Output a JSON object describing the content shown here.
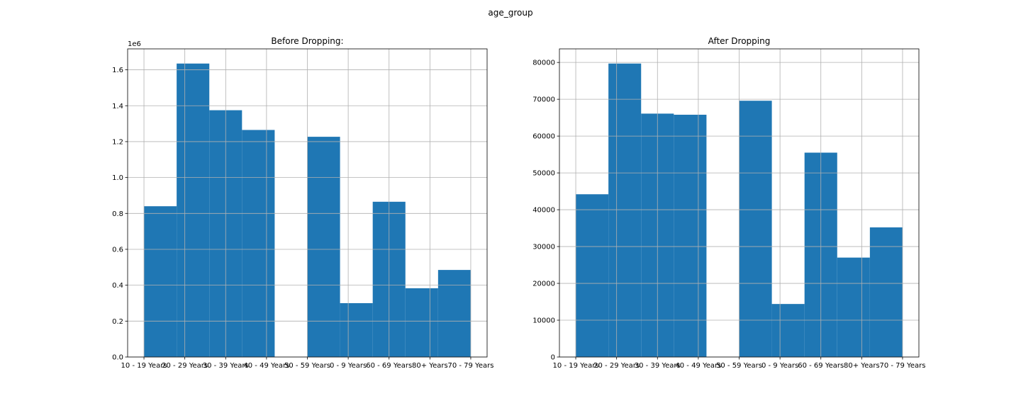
{
  "figure": {
    "suptitle": "age_group"
  },
  "chart_data": [
    {
      "type": "bar",
      "title": "Before Dropping:",
      "xlabel": "",
      "ylabel": "",
      "y_offset_label": "1e6",
      "y_scale": 1000000,
      "categories": [
        "10 - 19 Years",
        "20 - 29 Years",
        "30 - 39 Years",
        "40 - 49 Years",
        "50 - 59 Years",
        "0 - 9 Years",
        "60 - 69 Years",
        "80+ Years",
        "70 - 79 Years"
      ],
      "bins": [
        {
          "start": 0.0,
          "end": 0.8,
          "value": 840000
        },
        {
          "start": 0.8,
          "end": 1.6,
          "value": 1635000
        },
        {
          "start": 1.6,
          "end": 2.4,
          "value": 1375000
        },
        {
          "start": 2.4,
          "end": 3.2,
          "value": 1265000
        },
        {
          "start": 3.2,
          "end": 4.0,
          "value": 0
        },
        {
          "start": 4.0,
          "end": 4.8,
          "value": 1227000
        },
        {
          "start": 4.8,
          "end": 5.6,
          "value": 300000
        },
        {
          "start": 5.6,
          "end": 6.4,
          "value": 865000
        },
        {
          "start": 6.4,
          "end": 7.2,
          "value": 383000
        },
        {
          "start": 7.2,
          "end": 8.0,
          "value": 485000
        }
      ],
      "xlim": [
        -0.4,
        8.4
      ],
      "ylim": [
        0,
        1716750
      ],
      "yticks": [
        0,
        200000,
        400000,
        600000,
        800000,
        1000000,
        1200000,
        1400000,
        1600000
      ],
      "ytick_labels": [
        "0.0",
        "0.2",
        "0.4",
        "0.6",
        "0.8",
        "1.0",
        "1.2",
        "1.4",
        "1.6"
      ],
      "grid": true,
      "color": "#1f77b4"
    },
    {
      "type": "bar",
      "title": "After Dropping",
      "xlabel": "",
      "ylabel": "",
      "y_offset_label": "",
      "y_scale": 1,
      "categories": [
        "10 - 19 Years",
        "20 - 29 Years",
        "30 - 39 Years",
        "40 - 49 Years",
        "50 - 59 Years",
        "0 - 9 Years",
        "60 - 69 Years",
        "80+ Years",
        "70 - 79 Years"
      ],
      "bins": [
        {
          "start": 0.0,
          "end": 0.8,
          "value": 44200
        },
        {
          "start": 0.8,
          "end": 1.6,
          "value": 79700
        },
        {
          "start": 1.6,
          "end": 2.4,
          "value": 66100
        },
        {
          "start": 2.4,
          "end": 3.2,
          "value": 65800
        },
        {
          "start": 3.2,
          "end": 4.0,
          "value": 0
        },
        {
          "start": 4.0,
          "end": 4.8,
          "value": 69600
        },
        {
          "start": 4.8,
          "end": 5.6,
          "value": 14400
        },
        {
          "start": 5.6,
          "end": 6.4,
          "value": 55500
        },
        {
          "start": 6.4,
          "end": 7.2,
          "value": 27000
        },
        {
          "start": 7.2,
          "end": 8.0,
          "value": 35200
        }
      ],
      "xlim": [
        -0.4,
        8.4
      ],
      "ylim": [
        0,
        83685
      ],
      "yticks": [
        0,
        10000,
        20000,
        30000,
        40000,
        50000,
        60000,
        70000,
        80000
      ],
      "ytick_labels": [
        "0",
        "10000",
        "20000",
        "30000",
        "40000",
        "50000",
        "60000",
        "70000",
        "80000"
      ],
      "grid": true,
      "color": "#1f77b4"
    }
  ]
}
